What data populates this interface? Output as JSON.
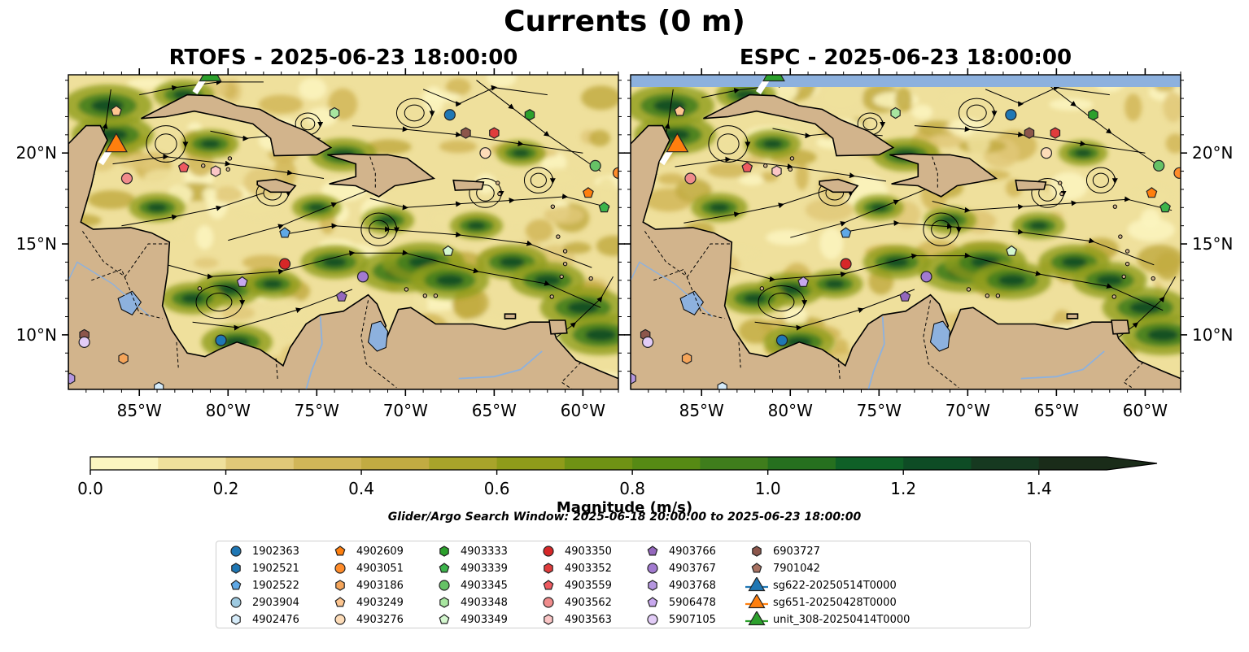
{
  "title": "Currents (0 m)",
  "panels": [
    {
      "title": "RTOFS - 2025-06-23 18:00:00",
      "yaxis_side": "left",
      "top_band": false
    },
    {
      "title": "ESPC - 2025-06-23 18:00:00",
      "yaxis_side": "right",
      "top_band": true
    }
  ],
  "map": {
    "lon_range": [
      -89,
      -58
    ],
    "lat_range": [
      7,
      24.3
    ],
    "lon_ticks": [
      -85,
      -80,
      -75,
      -70,
      -65,
      -60
    ],
    "lon_tick_labels": [
      "85°W",
      "80°W",
      "75°W",
      "70°W",
      "65°W",
      "60°W"
    ],
    "lat_ticks": [
      10,
      15,
      20
    ],
    "lat_tick_labels": [
      "10°N",
      "15°N",
      "20°N"
    ],
    "land_color": "#d2b48c",
    "water_color": "#8db1de"
  },
  "colorbar": {
    "label": "Magnitude (m/s)",
    "range": [
      0,
      1.5
    ],
    "extend": "max",
    "ticks": [
      0.0,
      0.2,
      0.4,
      0.6,
      0.8,
      1.0,
      1.2,
      1.4
    ],
    "tick_labels": [
      "0.0",
      "0.2",
      "0.4",
      "0.6",
      "0.8",
      "1.0",
      "1.2",
      "1.4"
    ],
    "colors": [
      "#fbf5c0",
      "#efe09c",
      "#e0c878",
      "#d1b658",
      "#c2ab42",
      "#a8a42a",
      "#8f9c1a",
      "#6f9214",
      "#568a14",
      "#3f7d1c",
      "#26701f",
      "#0f6027",
      "#0e4c25",
      "#163920",
      "#1a2c19"
    ]
  },
  "search_window": "Glider/Argo Search Window: 2025-06-18 20:00:00 to 2025-06-23 18:00:00",
  "legend": [
    {
      "label": "1902363",
      "marker": "circle",
      "color": "#1f77b4"
    },
    {
      "label": "1902521",
      "marker": "hexagon",
      "color": "#1f77b4"
    },
    {
      "label": "1902522",
      "marker": "pentagon",
      "color": "#5fa8e6"
    },
    {
      "label": "2903904",
      "marker": "circle",
      "color": "#9ecae1"
    },
    {
      "label": "4902476",
      "marker": "hexagon",
      "color": "#d6ecfa"
    },
    {
      "label": "4902609",
      "marker": "pentagon",
      "color": "#ff7f0e"
    },
    {
      "label": "4903051",
      "marker": "circle",
      "color": "#ff8c2a"
    },
    {
      "label": "4903186",
      "marker": "hexagon",
      "color": "#f5a55a"
    },
    {
      "label": "4903249",
      "marker": "pentagon",
      "color": "#fdc58f"
    },
    {
      "label": "4903276",
      "marker": "circle",
      "color": "#fddcb8"
    },
    {
      "label": "4903333",
      "marker": "hexagon",
      "color": "#2ca02c"
    },
    {
      "label": "4903339",
      "marker": "pentagon",
      "color": "#3cb44b"
    },
    {
      "label": "4903345",
      "marker": "circle",
      "color": "#66c266"
    },
    {
      "label": "4903348",
      "marker": "hexagon",
      "color": "#a8e6a0"
    },
    {
      "label": "4903349",
      "marker": "pentagon",
      "color": "#d4f7cf"
    },
    {
      "label": "4903350",
      "marker": "circle",
      "color": "#d62728"
    },
    {
      "label": "4903352",
      "marker": "hexagon",
      "color": "#e03c3c"
    },
    {
      "label": "4903559",
      "marker": "pentagon",
      "color": "#ee5a60"
    },
    {
      "label": "4903562",
      "marker": "circle",
      "color": "#f08c8c"
    },
    {
      "label": "4903563",
      "marker": "hexagon",
      "color": "#fbc6c6"
    },
    {
      "label": "4903766",
      "marker": "pentagon",
      "color": "#9467bd"
    },
    {
      "label": "4903767",
      "marker": "circle",
      "color": "#a27ad0"
    },
    {
      "label": "4903768",
      "marker": "hexagon",
      "color": "#b596e0"
    },
    {
      "label": "5906478",
      "marker": "pentagon",
      "color": "#c8a8ee"
    },
    {
      "label": "5907105",
      "marker": "circle",
      "color": "#e2ccf7"
    },
    {
      "label": "6903727",
      "marker": "hexagon",
      "color": "#8c564b"
    },
    {
      "label": "7901042",
      "marker": "pentagon",
      "color": "#a87262"
    },
    {
      "label": "sg622-20250514T0000",
      "marker": "triangle",
      "color": "#1f77b4"
    },
    {
      "label": "sg651-20250428T0000",
      "marker": "triangle",
      "color": "#ff7f0e"
    },
    {
      "label": "unit_308-20250414T0000",
      "marker": "triangle",
      "color": "#2ca02c"
    }
  ],
  "positions": [
    {
      "id": "1902363",
      "lon": -67.5,
      "lat": 22.1
    },
    {
      "id": "6903727",
      "lon": -66.6,
      "lat": 21.1
    },
    {
      "id": "4903352",
      "lon": -65.0,
      "lat": 21.1
    },
    {
      "id": "4903333",
      "lon": -63.0,
      "lat": 22.1
    },
    {
      "id": "4903348",
      "lon": -74.0,
      "lat": 22.2
    },
    {
      "id": "4903249",
      "lon": -86.3,
      "lat": 22.3
    },
    {
      "id": "4903276",
      "lon": -65.5,
      "lat": 20.0
    },
    {
      "id": "4903345",
      "lon": -59.3,
      "lat": 19.3
    },
    {
      "id": "4903051",
      "lon": -58.0,
      "lat": 18.9
    },
    {
      "id": "4902609",
      "lon": -59.7,
      "lat": 17.8
    },
    {
      "id": "4903339",
      "lon": -58.8,
      "lat": 17.0
    },
    {
      "id": "4903559",
      "lon": -82.5,
      "lat": 19.2
    },
    {
      "id": "4903563",
      "lon": -80.7,
      "lat": 19.0
    },
    {
      "id": "4903562",
      "lon": -85.7,
      "lat": 18.6
    },
    {
      "id": "1902522",
      "lon": -76.8,
      "lat": 15.6
    },
    {
      "id": "4903349",
      "lon": -67.6,
      "lat": 14.6
    },
    {
      "id": "4903350",
      "lon": -76.8,
      "lat": 13.9
    },
    {
      "id": "4903767",
      "lon": -72.4,
      "lat": 13.2
    },
    {
      "id": "5906478",
      "lon": -79.2,
      "lat": 12.9
    },
    {
      "id": "4903766",
      "lon": -73.6,
      "lat": 12.1
    },
    {
      "id": "6903727",
      "lon": -88.1,
      "lat": 10.0
    },
    {
      "id": "5907105",
      "lon": -88.1,
      "lat": 9.6
    },
    {
      "id": "1902363",
      "lon": -80.4,
      "lat": 9.7
    },
    {
      "id": "4903186",
      "lon": -85.9,
      "lat": 8.7
    },
    {
      "id": "4903768",
      "lon": -88.9,
      "lat": 7.6
    },
    {
      "id": "4902476",
      "lon": -83.9,
      "lat": 7.1
    },
    {
      "id": "sg651-20250428T0000",
      "lon": -86.3,
      "lat": 20.4
    },
    {
      "id": "unit_308-20250414T0000",
      "lon": -81.0,
      "lat": 24.3
    }
  ]
}
